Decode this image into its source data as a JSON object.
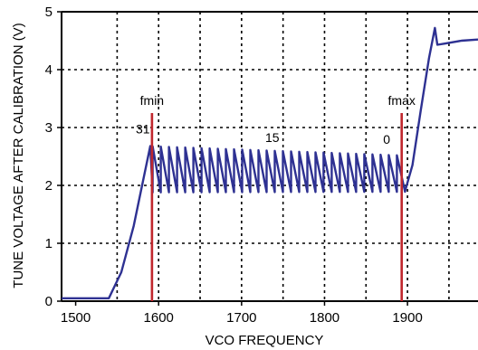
{
  "chart_data": {
    "type": "line",
    "title": "",
    "xlabel": "VCO FREQUENCY",
    "ylabel": "TUNE VOLTAGE AFTER CALIBRATION (V)",
    "xlim": [
      1483,
      1985
    ],
    "ylim": [
      0,
      5
    ],
    "x_ticks": [
      1500,
      1600,
      1700,
      1800,
      1900
    ],
    "x_tick_labels": [
      "1500",
      "1600",
      "1700",
      "1800",
      "1900"
    ],
    "y_ticks": [
      0,
      1,
      2,
      3,
      4,
      5
    ],
    "y_tick_labels": [
      "0",
      "1",
      "2",
      "3",
      "4",
      "5"
    ],
    "grid": true,
    "grid_x": [
      1550,
      1600,
      1650,
      1700,
      1750,
      1800,
      1850,
      1900,
      1950
    ],
    "grid_y": [
      1,
      2,
      3,
      4,
      5
    ],
    "series": [
      {
        "color": "#2e3192",
        "ramp_in": [
          [
            1483,
            0.05
          ],
          [
            1540,
            0.05
          ],
          [
            1555,
            0.5
          ],
          [
            1570,
            1.3
          ],
          [
            1583,
            2.2
          ],
          [
            1590,
            2.68
          ]
        ],
        "sawtooth": {
          "count": 32,
          "x_start": 1583,
          "x_end": 1897,
          "low_start": 1.88,
          "low_end": 1.89,
          "high_start": 2.68,
          "high_end": 2.52
        },
        "ramp_out": [
          [
            1897,
            1.9
          ],
          [
            1906,
            2.35
          ],
          [
            1916,
            3.3
          ],
          [
            1926,
            4.2
          ],
          [
            1933,
            4.72
          ],
          [
            1936,
            4.43
          ],
          [
            1945,
            4.45
          ],
          [
            1965,
            4.5
          ],
          [
            1985,
            4.52
          ]
        ]
      }
    ],
    "markers": [
      {
        "name": "fmin",
        "x": 1592,
        "color": "#c0272d"
      },
      {
        "name": "fmax",
        "x": 1893,
        "color": "#c0272d"
      }
    ],
    "annotations": [
      {
        "text": "31",
        "x": 1581,
        "y": 2.9
      },
      {
        "text": "15",
        "x": 1737,
        "y": 2.75
      },
      {
        "text": "0",
        "x": 1875,
        "y": 2.72
      }
    ]
  }
}
